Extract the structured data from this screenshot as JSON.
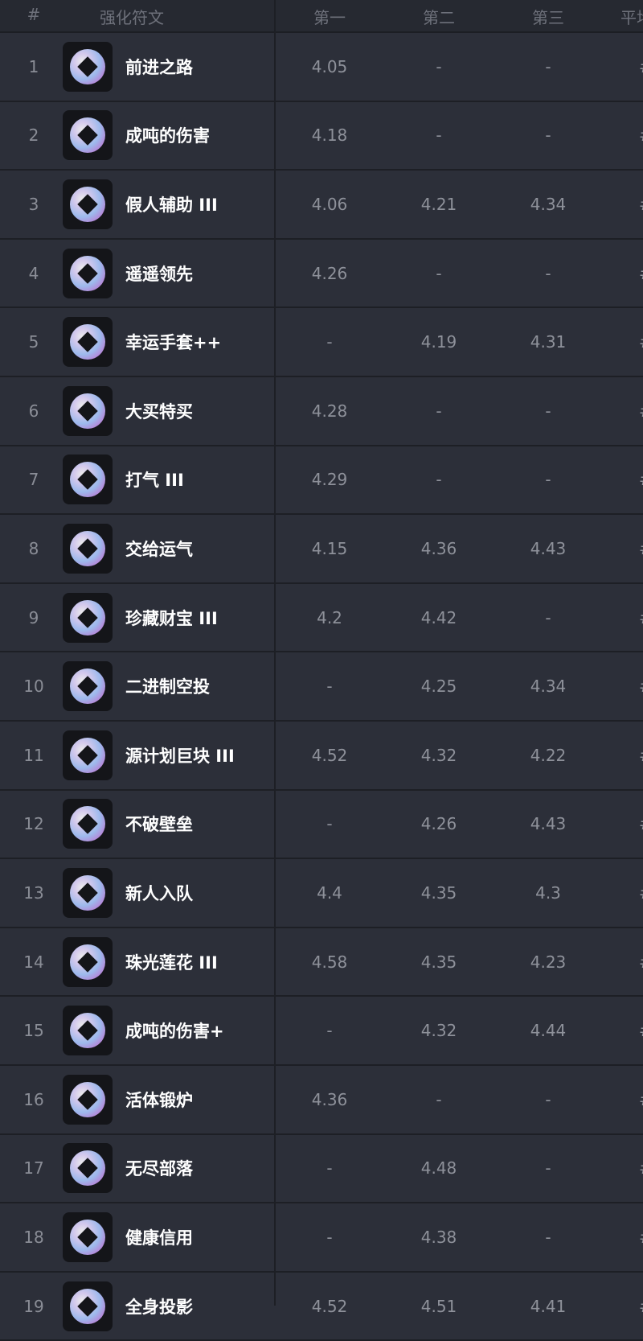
{
  "header": {
    "rank": "#",
    "name": "强化符文",
    "col1": "第一",
    "col2": "第二",
    "col3": "第三",
    "col4": "平均"
  },
  "rows": [
    {
      "rank": "1",
      "name": "前进之路",
      "icon": "arrow-up-rune-icon",
      "v": [
        "4.05",
        "-",
        "-",
        "#"
      ]
    },
    {
      "rank": "2",
      "name": "成吨的伤害",
      "icon": "swirl-rune-icon",
      "v": [
        "4.18",
        "-",
        "-",
        "#"
      ]
    },
    {
      "rank": "3",
      "name": "假人辅助 III",
      "icon": "dummy-rune-icon",
      "v": [
        "4.06",
        "4.21",
        "4.34",
        "#"
      ]
    },
    {
      "rank": "4",
      "name": "遥遥领先",
      "icon": "bag-rune-icon",
      "v": [
        "4.26",
        "-",
        "-",
        "#"
      ]
    },
    {
      "rank": "5",
      "name": "幸运手套++",
      "icon": "paw-rune-icon",
      "v": [
        "-",
        "4.19",
        "4.31",
        "#"
      ]
    },
    {
      "rank": "6",
      "name": "大买特买",
      "icon": "coin-rune-icon",
      "v": [
        "4.28",
        "-",
        "-",
        "#"
      ]
    },
    {
      "rank": "7",
      "name": "打气 III",
      "icon": "arrow-down-rune-icon",
      "v": [
        "4.29",
        "-",
        "-",
        "#"
      ]
    },
    {
      "rank": "8",
      "name": "交给运气",
      "icon": "dice-rune-icon",
      "v": [
        "4.15",
        "4.36",
        "4.43",
        "#"
      ]
    },
    {
      "rank": "9",
      "name": "珍藏财宝 III",
      "icon": "mystery-box-icon",
      "v": [
        "4.2",
        "4.42",
        "-",
        "#"
      ]
    },
    {
      "rank": "10",
      "name": "二进制空投",
      "icon": "parachute-icon",
      "v": [
        "-",
        "4.25",
        "4.34",
        "#"
      ]
    },
    {
      "rank": "11",
      "name": "源计划巨块 III",
      "icon": "heart-box-icon",
      "v": [
        "4.52",
        "4.32",
        "4.22",
        "#"
      ]
    },
    {
      "rank": "12",
      "name": "不破壁垒",
      "icon": "shield-icon",
      "v": [
        "-",
        "4.26",
        "4.43",
        "#"
      ]
    },
    {
      "rank": "13",
      "name": "新人入队",
      "icon": "flag-helmet-icon",
      "v": [
        "4.4",
        "4.35",
        "4.3",
        "#"
      ]
    },
    {
      "rank": "14",
      "name": "珠光莲花 III",
      "icon": "lotus-icon",
      "v": [
        "4.58",
        "4.35",
        "4.23",
        "#"
      ]
    },
    {
      "rank": "15",
      "name": "成吨的伤害+",
      "icon": "swirl-rune-icon",
      "v": [
        "-",
        "4.32",
        "4.44",
        "#"
      ]
    },
    {
      "rank": "16",
      "name": "活体锻炉",
      "icon": "anvil-icon",
      "v": [
        "4.36",
        "-",
        "-",
        "#"
      ]
    },
    {
      "rank": "17",
      "name": "无尽部落",
      "icon": "helmet-icon",
      "v": [
        "-",
        "4.48",
        "-",
        "#"
      ]
    },
    {
      "rank": "18",
      "name": "健康信用",
      "icon": "money-bag-icon",
      "v": [
        "-",
        "4.38",
        "-",
        "#"
      ]
    },
    {
      "rank": "19",
      "name": "全身投影",
      "icon": "silhouette-icon",
      "v": [
        "4.52",
        "4.51",
        "4.41",
        "#"
      ]
    }
  ]
}
